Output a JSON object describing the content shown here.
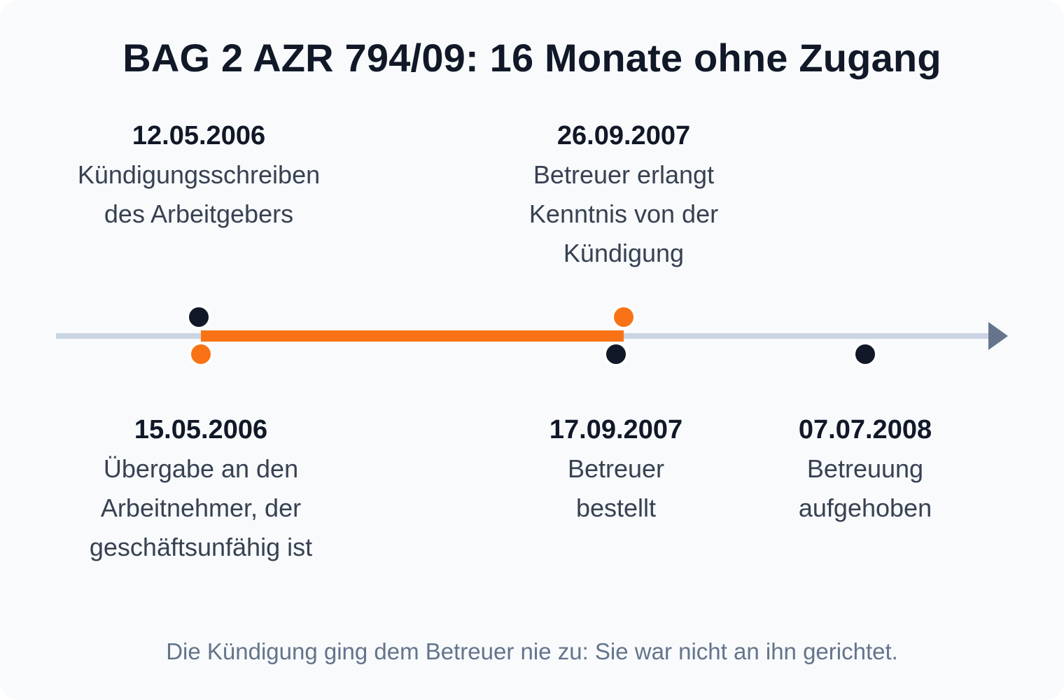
{
  "title": "BAG 2 AZR 794/09: 16 Monate ohne Zugang",
  "events_top": [
    {
      "date": "12.05.2006",
      "lines": [
        "Kündigungsschreiben",
        "des Arbeitgebers"
      ]
    },
    {
      "date": "26.09.2007",
      "lines": [
        "Betreuer erlangt",
        "Kenntnis von der",
        "Kündigung"
      ]
    }
  ],
  "events_bottom": [
    {
      "date": "15.05.2006",
      "lines": [
        "Übergabe an den",
        "Arbeitnehmer, der",
        "geschäftsunfähig ist"
      ]
    },
    {
      "date": "17.09.2007",
      "lines": [
        "Betreuer",
        "bestellt"
      ]
    },
    {
      "date": "07.07.2008",
      "lines": [
        "Betreuung",
        "aufgehoben"
      ]
    }
  ],
  "footer": "Die Kündigung ging dem Betreuer nie zu: Sie war nicht an ihn gerichtet.",
  "colors": {
    "axis": "#cbd5e1",
    "arrow": "#64748b",
    "highlight": "#f97316",
    "dot": "#111827"
  }
}
